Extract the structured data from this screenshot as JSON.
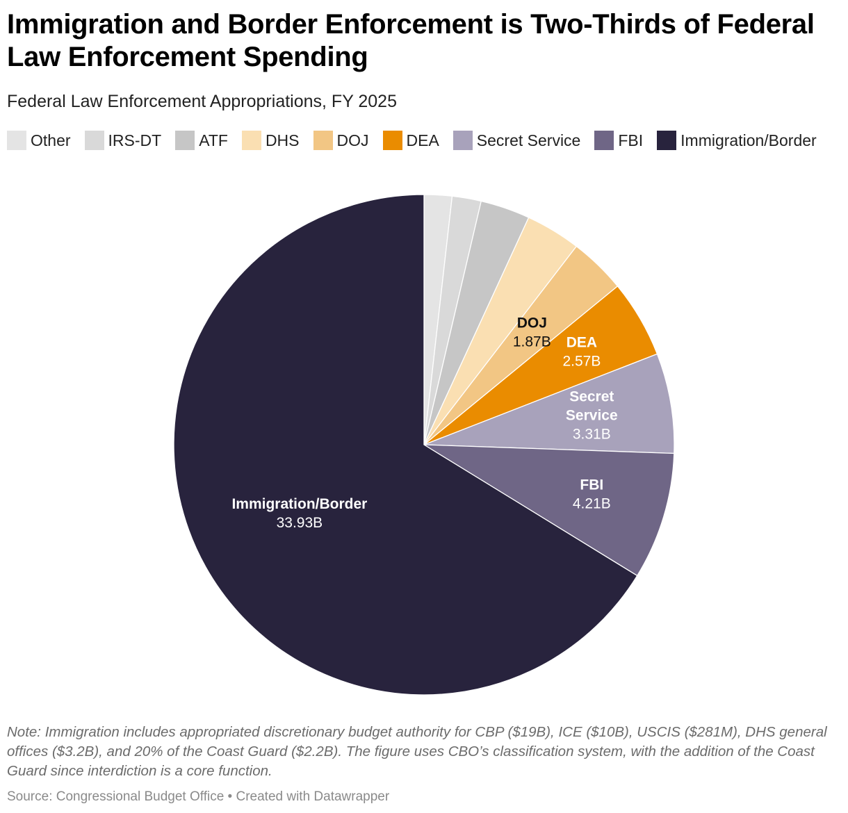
{
  "title": "Immigration and Border Enforcement is Two-Thirds of Federal Law Enforcement Spending",
  "subtitle": "Federal Law Enforcement Appropriations, FY 2025",
  "chart_data": {
    "type": "pie",
    "title": "Immigration and Border Enforcement is Two-Thirds of Federal Law Enforcement Spending",
    "subtitle": "Federal Law Enforcement Appropriations, FY 2025",
    "legend_position": "top",
    "start_angle_deg": 0,
    "direction": "clockwise",
    "slices": [
      {
        "name": "Other",
        "value": 0.92,
        "color": "#e4e4e4",
        "label": "",
        "value_label": "",
        "label_color": ""
      },
      {
        "name": "IRS-DT",
        "value": 0.96,
        "color": "#d9d9d9",
        "label": "",
        "value_label": "",
        "label_color": ""
      },
      {
        "name": "ATF",
        "value": 1.64,
        "color": "#c6c6c6",
        "label": "",
        "value_label": "",
        "label_color": ""
      },
      {
        "name": "DHS",
        "value": 1.82,
        "color": "#fadfb2",
        "label": "",
        "value_label": "",
        "label_color": ""
      },
      {
        "name": "DOJ",
        "value": 1.87,
        "color": "#f2c684",
        "label": "DOJ",
        "value_label": "1.87B",
        "label_color": "#111111"
      },
      {
        "name": "DEA",
        "value": 2.57,
        "color": "#ea8c00",
        "label": "DEA",
        "value_label": "2.57B",
        "label_color": "#ffffff"
      },
      {
        "name": "Secret Service",
        "value": 3.31,
        "color": "#a8a2bb",
        "label": "Secret Service",
        "value_label": "3.31B",
        "label_color": "#ffffff"
      },
      {
        "name": "FBI",
        "value": 4.21,
        "color": "#6f6686",
        "label": "FBI",
        "value_label": "4.21B",
        "label_color": "#ffffff"
      },
      {
        "name": "Immigration/Border",
        "value": 33.93,
        "color": "#28233d",
        "label": "Immigration/Border",
        "value_label": "33.93B",
        "label_color": "#ffffff"
      }
    ]
  },
  "note": "Note: Immigration includes appropriated discretionary budget authority for CBP ($19B), ICE ($10B), USCIS ($281M), DHS general offices ($3.2B), and 20% of the Coast Guard ($2.2B). The figure uses CBO’s classification system, with the addition of the Coast Guard since interdiction is a core function.",
  "footer": "Source: Congressional Budget Office • Created with Datawrapper"
}
